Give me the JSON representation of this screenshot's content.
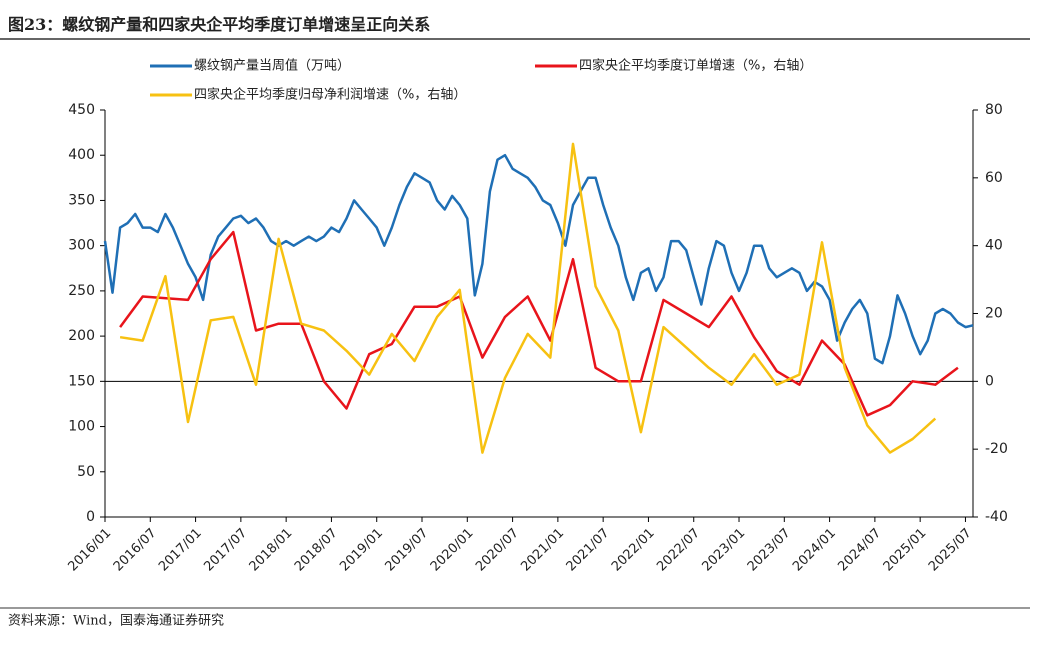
{
  "chart_data": {
    "type": "line",
    "title": "图23：螺纹钢产量和四家央企平均季度订单增速呈正向关系",
    "source": "资料来源：Wind，国泰海通证券研究",
    "xlim": [
      "2016/01",
      "2025/08"
    ],
    "xticks": [
      "2016/01",
      "2016/07",
      "2017/01",
      "2017/07",
      "2018/01",
      "2018/07",
      "2019/01",
      "2019/07",
      "2020/01",
      "2020/07",
      "2021/01",
      "2021/07",
      "2022/01",
      "2022/07",
      "2023/01",
      "2023/07",
      "2024/01",
      "2024/07",
      "2025/01",
      "2025/07"
    ],
    "ylim": [
      0,
      450
    ],
    "yticks": [
      0,
      50,
      100,
      150,
      200,
      250,
      300,
      350,
      400,
      450
    ],
    "y2lim": [
      -40,
      80
    ],
    "y2ticks": [
      -40,
      -20,
      0,
      20,
      40,
      60,
      80
    ],
    "series": [
      {
        "name": "螺纹钢产量当周值（万吨）",
        "color": "#1f6fb5",
        "axis": "y",
        "x": [
          "2016/01",
          "2016/02",
          "2016/03",
          "2016/04",
          "2016/05",
          "2016/06",
          "2016/07",
          "2016/08",
          "2016/09",
          "2016/10",
          "2016/11",
          "2016/12",
          "2017/01",
          "2017/02",
          "2017/03",
          "2017/04",
          "2017/05",
          "2017/06",
          "2017/07",
          "2017/08",
          "2017/09",
          "2017/10",
          "2017/11",
          "2017/12",
          "2018/01",
          "2018/02",
          "2018/03",
          "2018/04",
          "2018/05",
          "2018/06",
          "2018/07",
          "2018/08",
          "2018/09",
          "2018/10",
          "2018/11",
          "2018/12",
          "2019/01",
          "2019/02",
          "2019/03",
          "2019/04",
          "2019/05",
          "2019/06",
          "2019/07",
          "2019/08",
          "2019/09",
          "2019/10",
          "2019/11",
          "2019/12",
          "2020/01",
          "2020/02",
          "2020/03",
          "2020/04",
          "2020/05",
          "2020/06",
          "2020/07",
          "2020/08",
          "2020/09",
          "2020/10",
          "2020/11",
          "2020/12",
          "2021/01",
          "2021/02",
          "2021/03",
          "2021/04",
          "2021/05",
          "2021/06",
          "2021/07",
          "2021/08",
          "2021/09",
          "2021/10",
          "2021/11",
          "2021/12",
          "2022/01",
          "2022/02",
          "2022/03",
          "2022/04",
          "2022/05",
          "2022/06",
          "2022/07",
          "2022/08",
          "2022/09",
          "2022/10",
          "2022/11",
          "2022/12",
          "2023/01",
          "2023/02",
          "2023/03",
          "2023/04",
          "2023/05",
          "2023/06",
          "2023/07",
          "2023/08",
          "2023/09",
          "2023/10",
          "2023/11",
          "2023/12",
          "2024/01",
          "2024/02",
          "2024/03",
          "2024/04",
          "2024/05",
          "2024/06",
          "2024/07",
          "2024/08",
          "2024/09",
          "2024/10",
          "2024/11",
          "2024/12",
          "2025/01",
          "2025/02",
          "2025/03",
          "2025/04",
          "2025/05",
          "2025/06",
          "2025/07",
          "2025/08"
        ],
        "values": [
          305,
          248,
          320,
          325,
          335,
          320,
          320,
          315,
          335,
          320,
          300,
          280,
          265,
          240,
          290,
          310,
          320,
          330,
          333,
          325,
          330,
          320,
          305,
          300,
          305,
          300,
          305,
          310,
          305,
          310,
          320,
          315,
          330,
          350,
          340,
          330,
          320,
          300,
          320,
          345,
          365,
          380,
          375,
          370,
          350,
          340,
          355,
          345,
          330,
          245,
          280,
          360,
          395,
          400,
          385,
          380,
          375,
          365,
          350,
          345,
          325,
          300,
          345,
          360,
          375,
          375,
          345,
          320,
          300,
          265,
          240,
          270,
          275,
          250,
          265,
          305,
          305,
          295,
          265,
          235,
          275,
          305,
          300,
          270,
          250,
          270,
          300,
          300,
          275,
          265,
          270,
          275,
          270,
          250,
          260,
          255,
          240,
          195,
          215,
          230,
          240,
          225,
          175,
          170,
          200,
          245,
          225,
          200,
          180,
          195,
          225,
          230,
          225,
          215,
          210,
          212
        ]
      },
      {
        "name": "四家央企平均季度订单增速（%，右轴）",
        "color": "#e8141b",
        "axis": "y2",
        "x": [
          "2016/03",
          "2016/06",
          "2016/12",
          "2017/03",
          "2017/06",
          "2017/09",
          "2017/12",
          "2018/03",
          "2018/06",
          "2018/09",
          "2018/12",
          "2019/03",
          "2019/06",
          "2019/09",
          "2019/12",
          "2020/03",
          "2020/06",
          "2020/09",
          "2020/12",
          "2021/03",
          "2021/06",
          "2021/09",
          "2021/12",
          "2022/03",
          "2022/06",
          "2022/09",
          "2022/12",
          "2023/03",
          "2023/06",
          "2023/09",
          "2023/12",
          "2024/03",
          "2024/06",
          "2024/09",
          "2024/12",
          "2025/03",
          "2025/06"
        ],
        "values": [
          16,
          25,
          24,
          36,
          44,
          15,
          17,
          17,
          0,
          -8,
          8,
          11,
          22,
          22,
          25,
          7,
          19,
          25,
          12,
          36,
          4,
          0,
          0,
          24,
          20,
          16,
          25,
          13,
          3,
          -1,
          12,
          5,
          -10,
          -7,
          0,
          -1,
          4
        ]
      },
      {
        "name": "四家央企平均季度归母净利润增速（%，右轴）",
        "color": "#f7c111",
        "axis": "y2",
        "x": [
          "2016/03",
          "2016/06",
          "2016/09",
          "2016/12",
          "2017/03",
          "2017/06",
          "2017/09",
          "2017/12",
          "2018/03",
          "2018/06",
          "2018/09",
          "2018/12",
          "2019/03",
          "2019/06",
          "2019/09",
          "2019/12",
          "2020/03",
          "2020/06",
          "2020/09",
          "2020/12",
          "2021/03",
          "2021/06",
          "2021/09",
          "2021/12",
          "2022/03",
          "2022/06",
          "2022/09",
          "2022/12",
          "2023/03",
          "2023/06",
          "2023/09",
          "2023/12",
          "2024/03",
          "2024/06",
          "2024/09",
          "2024/12",
          "2025/03"
        ],
        "values": [
          13,
          12,
          31,
          -12,
          18,
          19,
          -1,
          42,
          17,
          15,
          9,
          2,
          14,
          6,
          19,
          27,
          -21,
          1,
          14,
          7,
          70,
          28,
          15,
          -15,
          16,
          10,
          4,
          -1,
          8,
          -1,
          2,
          41,
          4,
          -13,
          -21,
          -17,
          -11
        ]
      }
    ]
  }
}
